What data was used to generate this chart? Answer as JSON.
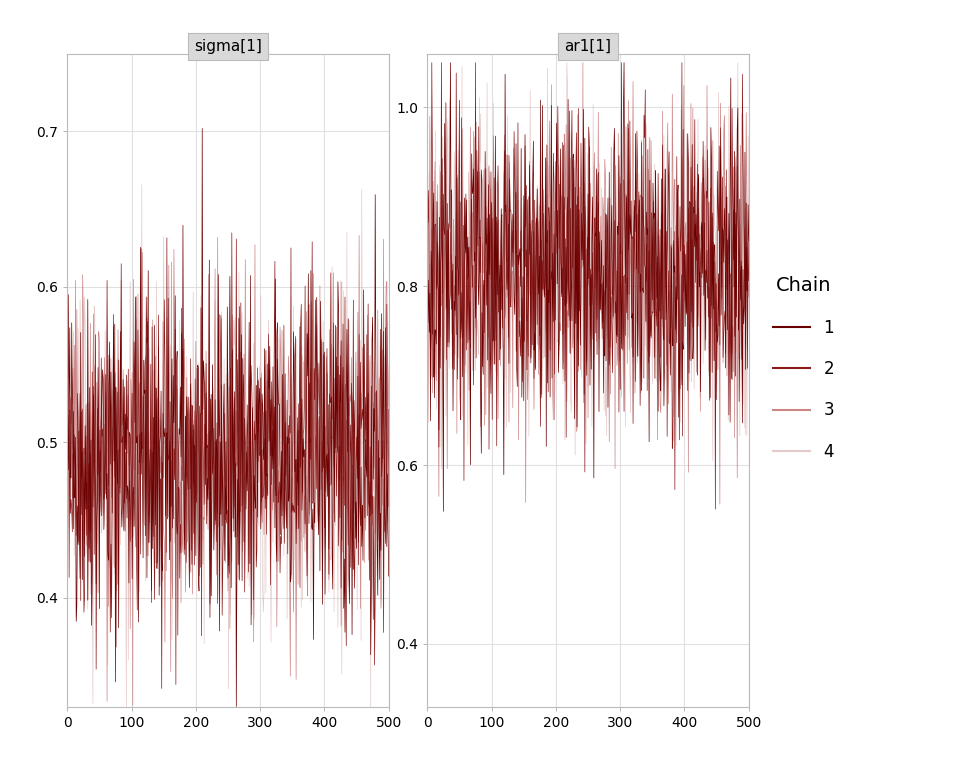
{
  "panel1_title": "sigma[1]",
  "panel2_title": "ar1[1]",
  "legend_title": "Chain",
  "chain_labels": [
    "1",
    "2",
    "3",
    "4"
  ],
  "chain_colors": [
    "#6B0000",
    "#8B1A1A",
    "#C47070",
    "#DEB8B8"
  ],
  "chain_alphas": [
    1.0,
    1.0,
    0.85,
    0.75
  ],
  "n_iterations": 500,
  "sigma_ylim": [
    0.33,
    0.75
  ],
  "sigma_yticks": [
    0.4,
    0.5,
    0.6,
    0.7
  ],
  "ar1_ylim": [
    0.33,
    1.06
  ],
  "ar1_yticks": [
    0.4,
    0.6,
    0.8,
    1.0
  ],
  "xticks": [
    0,
    100,
    200,
    300,
    400,
    500
  ],
  "background_color": "#FFFFFF",
  "panel_bg_color": "#FFFFFF",
  "grid_color": "#E0E0E0",
  "title_bg_color": "#D9D9D9",
  "sigma_mean": 0.49,
  "sigma_std": 0.055,
  "ar1_mean": 0.82,
  "ar1_std": 0.09,
  "seed": 42,
  "linewidth": 0.5
}
